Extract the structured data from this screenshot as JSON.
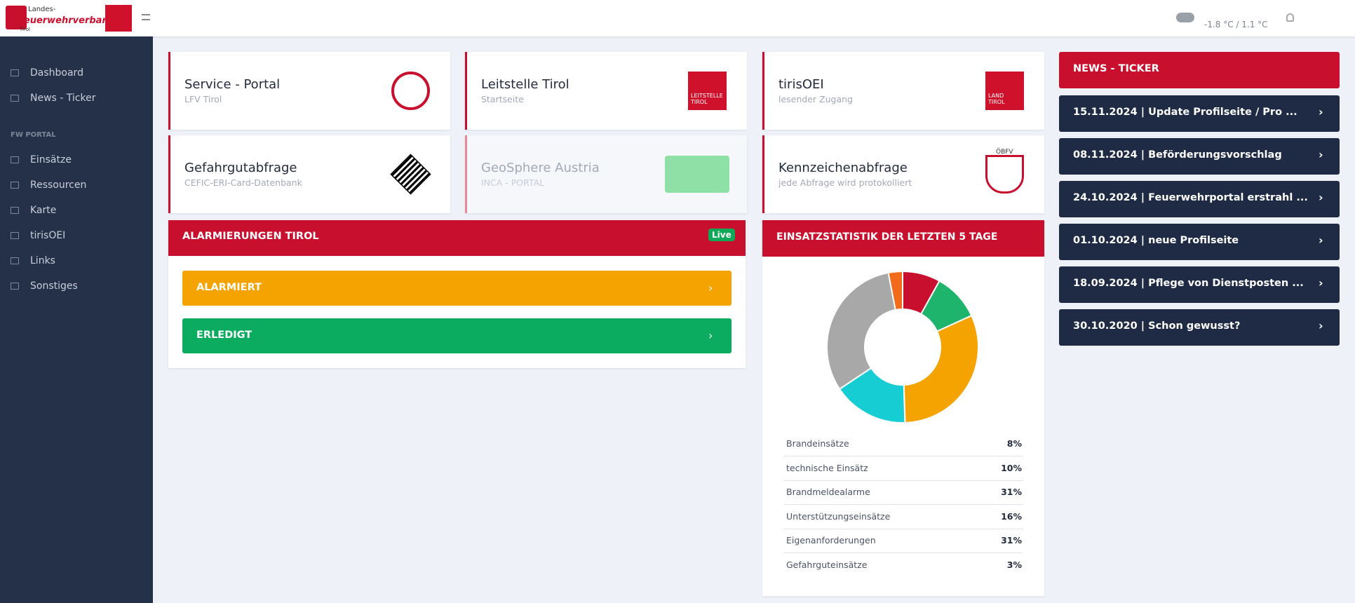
{
  "header": {
    "brand": [
      "Landes-",
      "Feuerwehrverband",
      "Tirol"
    ],
    "weather": "-1.8 °C / 1.1 °C"
  },
  "sidebar": {
    "items": [
      "Dashboard",
      "News - Ticker"
    ],
    "section": "FW PORTAL",
    "portal_items": [
      "Einsätze",
      "Ressourcen",
      "Karte",
      "tirisOEI",
      "Links",
      "Sonstiges"
    ]
  },
  "cards": [
    {
      "title": "Service - Portal",
      "subtitle": "LFV Tirol"
    },
    {
      "title": "Leitstelle Tirol",
      "subtitle": "Startseite",
      "logo": "LEITSTELLE TIROL"
    },
    {
      "title": "tirisOEI",
      "subtitle": "lesender Zugang",
      "logo": "LAND TIROL"
    },
    {
      "title": "Gefahrgutabfrage",
      "subtitle": "CEFIC-ERI-Card-Datenbank"
    },
    {
      "title": "GeoSphere Austria",
      "subtitle": "INCA - PORTAL"
    },
    {
      "title": "Kennzeichenabfrage",
      "subtitle": "jede Abfrage wird protokolliert",
      "logo": "ÖBFV"
    }
  ],
  "alarm": {
    "title": "ALARMIERUNGEN TIROL",
    "badge": "Live",
    "buttons": [
      "ALARMIERT",
      "ERLEDIGT"
    ]
  },
  "einsatzstatistik": {
    "title": "EINSATZSTATISTIK DER LETZTEN 5 TAGE",
    "chart": {
      "type": "pie",
      "categories": [
        "Brandeinsätze",
        "technische Einsätz",
        "Brandmeldealarme",
        "Unterstützungseinsätze",
        "Eigenanforderungen",
        "Gefahrguteinsätze"
      ],
      "values": [
        8,
        10,
        31,
        16,
        31,
        3
      ],
      "value_labels": [
        "8%",
        "10%",
        "31%",
        "16%",
        "31%",
        "3%"
      ],
      "colors": [
        "#c8102e",
        "#1fb46c",
        "#f4a300",
        "#17cdd4",
        "#a8a8a8",
        "#f26b1d"
      ]
    }
  },
  "news": {
    "title": "NEWS - TICKER",
    "items": [
      "15.11.2024 | Update Profilseite / Pro ...",
      "08.11.2024 | Beförderungsvorschlag",
      "24.10.2024 | Feuerwehrportal erstrahl ...",
      "01.10.2024 | neue Profilseite",
      "18.09.2024 | Pflege von Dienstposten ...",
      "30.10.2020 | Schon gewusst?"
    ]
  }
}
